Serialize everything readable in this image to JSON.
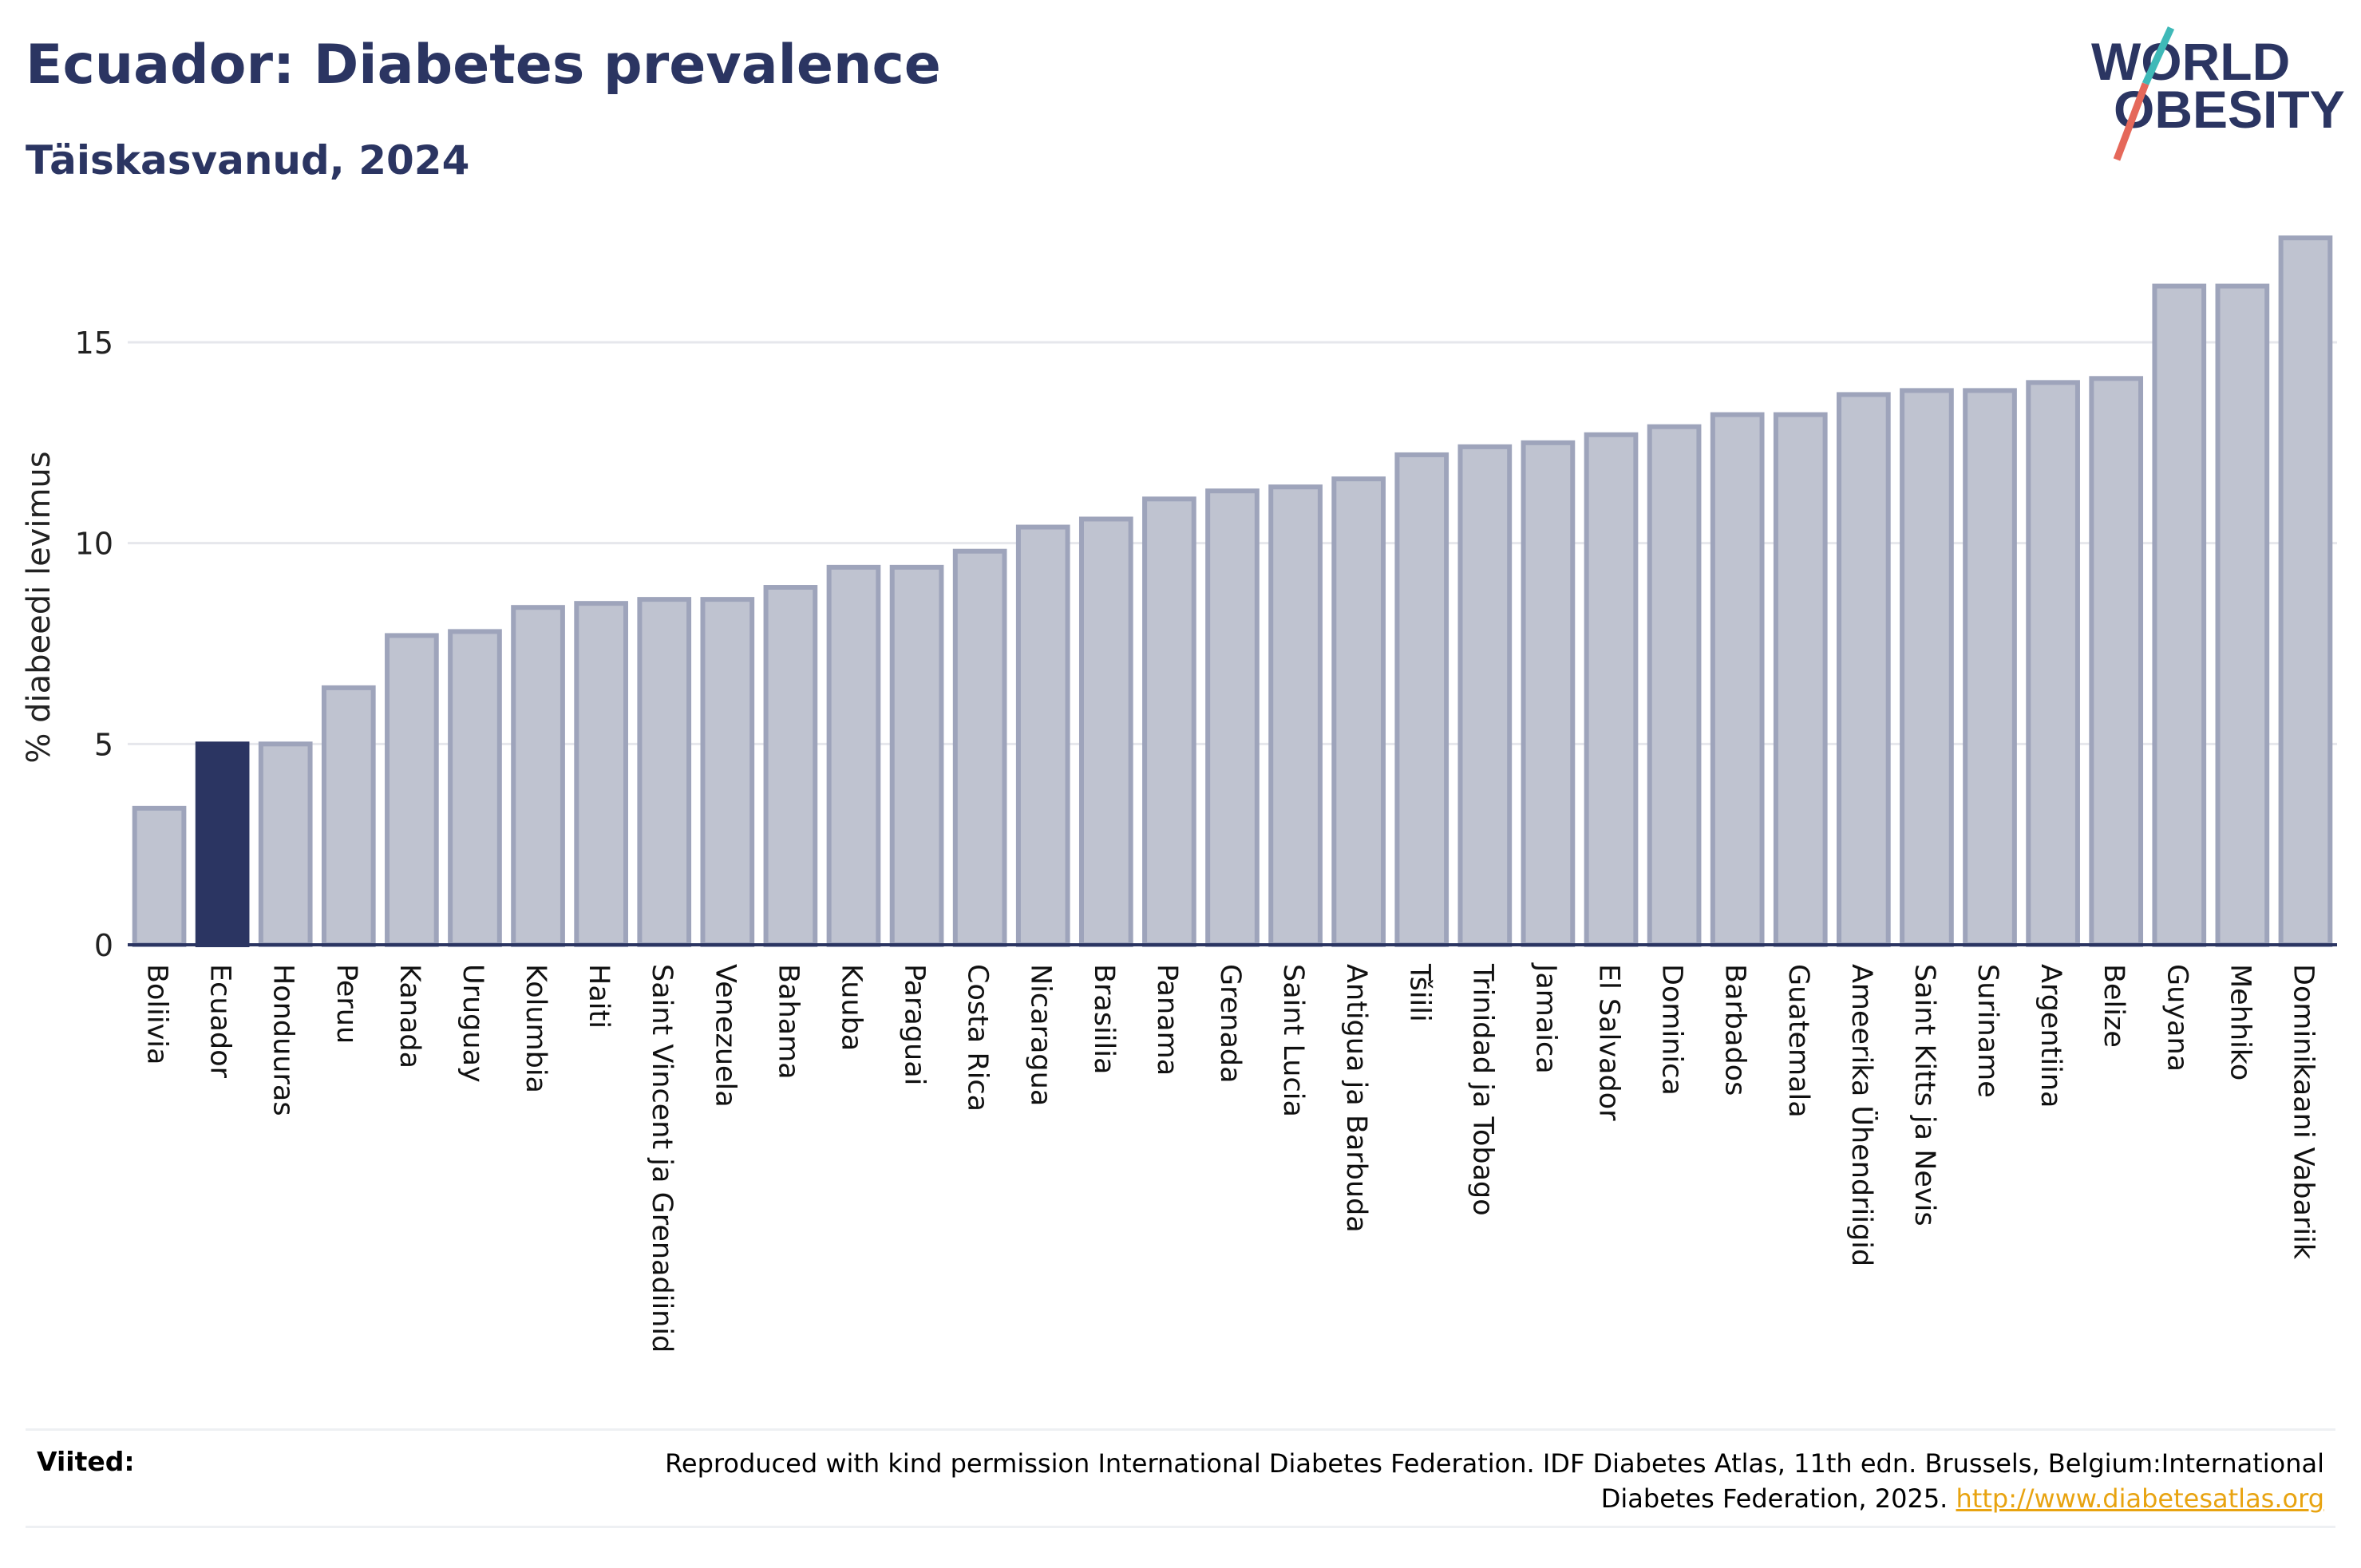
{
  "header": {
    "title": "Ecuador: Diabetes prevalence",
    "subtitle": "Täiskasvanud, 2024"
  },
  "logo": {
    "line1": "WORLD",
    "line2": "OBESITY",
    "icon": "world-obesity-logo",
    "colors": {
      "text": "#2b3562",
      "slash_top": "#3fb9b8",
      "slash_bottom": "#e5685a"
    }
  },
  "colors": {
    "bar": "#bfc3d0",
    "bar_stroke": "#9ea4bb",
    "highlight": "#2b3562",
    "grid": "#e6e7ec",
    "axis": "#2b3562",
    "link": "#e8a310"
  },
  "chart_data": {
    "type": "bar",
    "title": "Ecuador: Diabetes prevalence",
    "subtitle": "Täiskasvanud, 2024",
    "xlabel": "",
    "ylabel": "% diabeedi levimus",
    "ylim": [
      0,
      18
    ],
    "yticks": [
      0,
      5,
      10,
      15
    ],
    "grid": true,
    "highlight": "Ecuador",
    "categories": [
      "Boliivia",
      "Ecuador",
      "Honduuras",
      "Peruu",
      "Kanada",
      "Uruguay",
      "Kolumbia",
      "Haiti",
      "Saint Vincent ja Grenadiinid",
      "Venezuela",
      "Bahama",
      "Kuuba",
      "Paraguai",
      "Costa Rica",
      "Nicaragua",
      "Brasiilia",
      "Panama",
      "Grenada",
      "Saint Lucia",
      "Antigua ja Barbuda",
      "Tšiili",
      "Trinidad ja Tobago",
      "Jamaica",
      "El Salvador",
      "Dominica",
      "Barbados",
      "Guatemala",
      "Ameerika Ühendriigid",
      "Saint Kitts ja Nevis",
      "Suriname",
      "Argentiina",
      "Belize",
      "Guyana",
      "Mehhiko",
      "Dominikaani Vabariik"
    ],
    "values": [
      3.4,
      5.0,
      5.0,
      6.4,
      7.7,
      7.8,
      8.4,
      8.5,
      8.6,
      8.6,
      8.9,
      9.4,
      9.4,
      9.8,
      10.4,
      10.6,
      11.1,
      11.3,
      11.4,
      11.6,
      12.2,
      12.4,
      12.5,
      12.7,
      12.9,
      13.2,
      13.2,
      13.7,
      13.8,
      13.8,
      14.0,
      14.1,
      16.4,
      16.4,
      17.6
    ]
  },
  "footer": {
    "label": "Viited:",
    "text": "Reproduced with kind permission International Diabetes Federation. IDF Diabetes Atlas, 11th edn. Brussels, Belgium:International Diabetes Federation, 2025.",
    "link": "http://www.diabetesatlas.org"
  }
}
